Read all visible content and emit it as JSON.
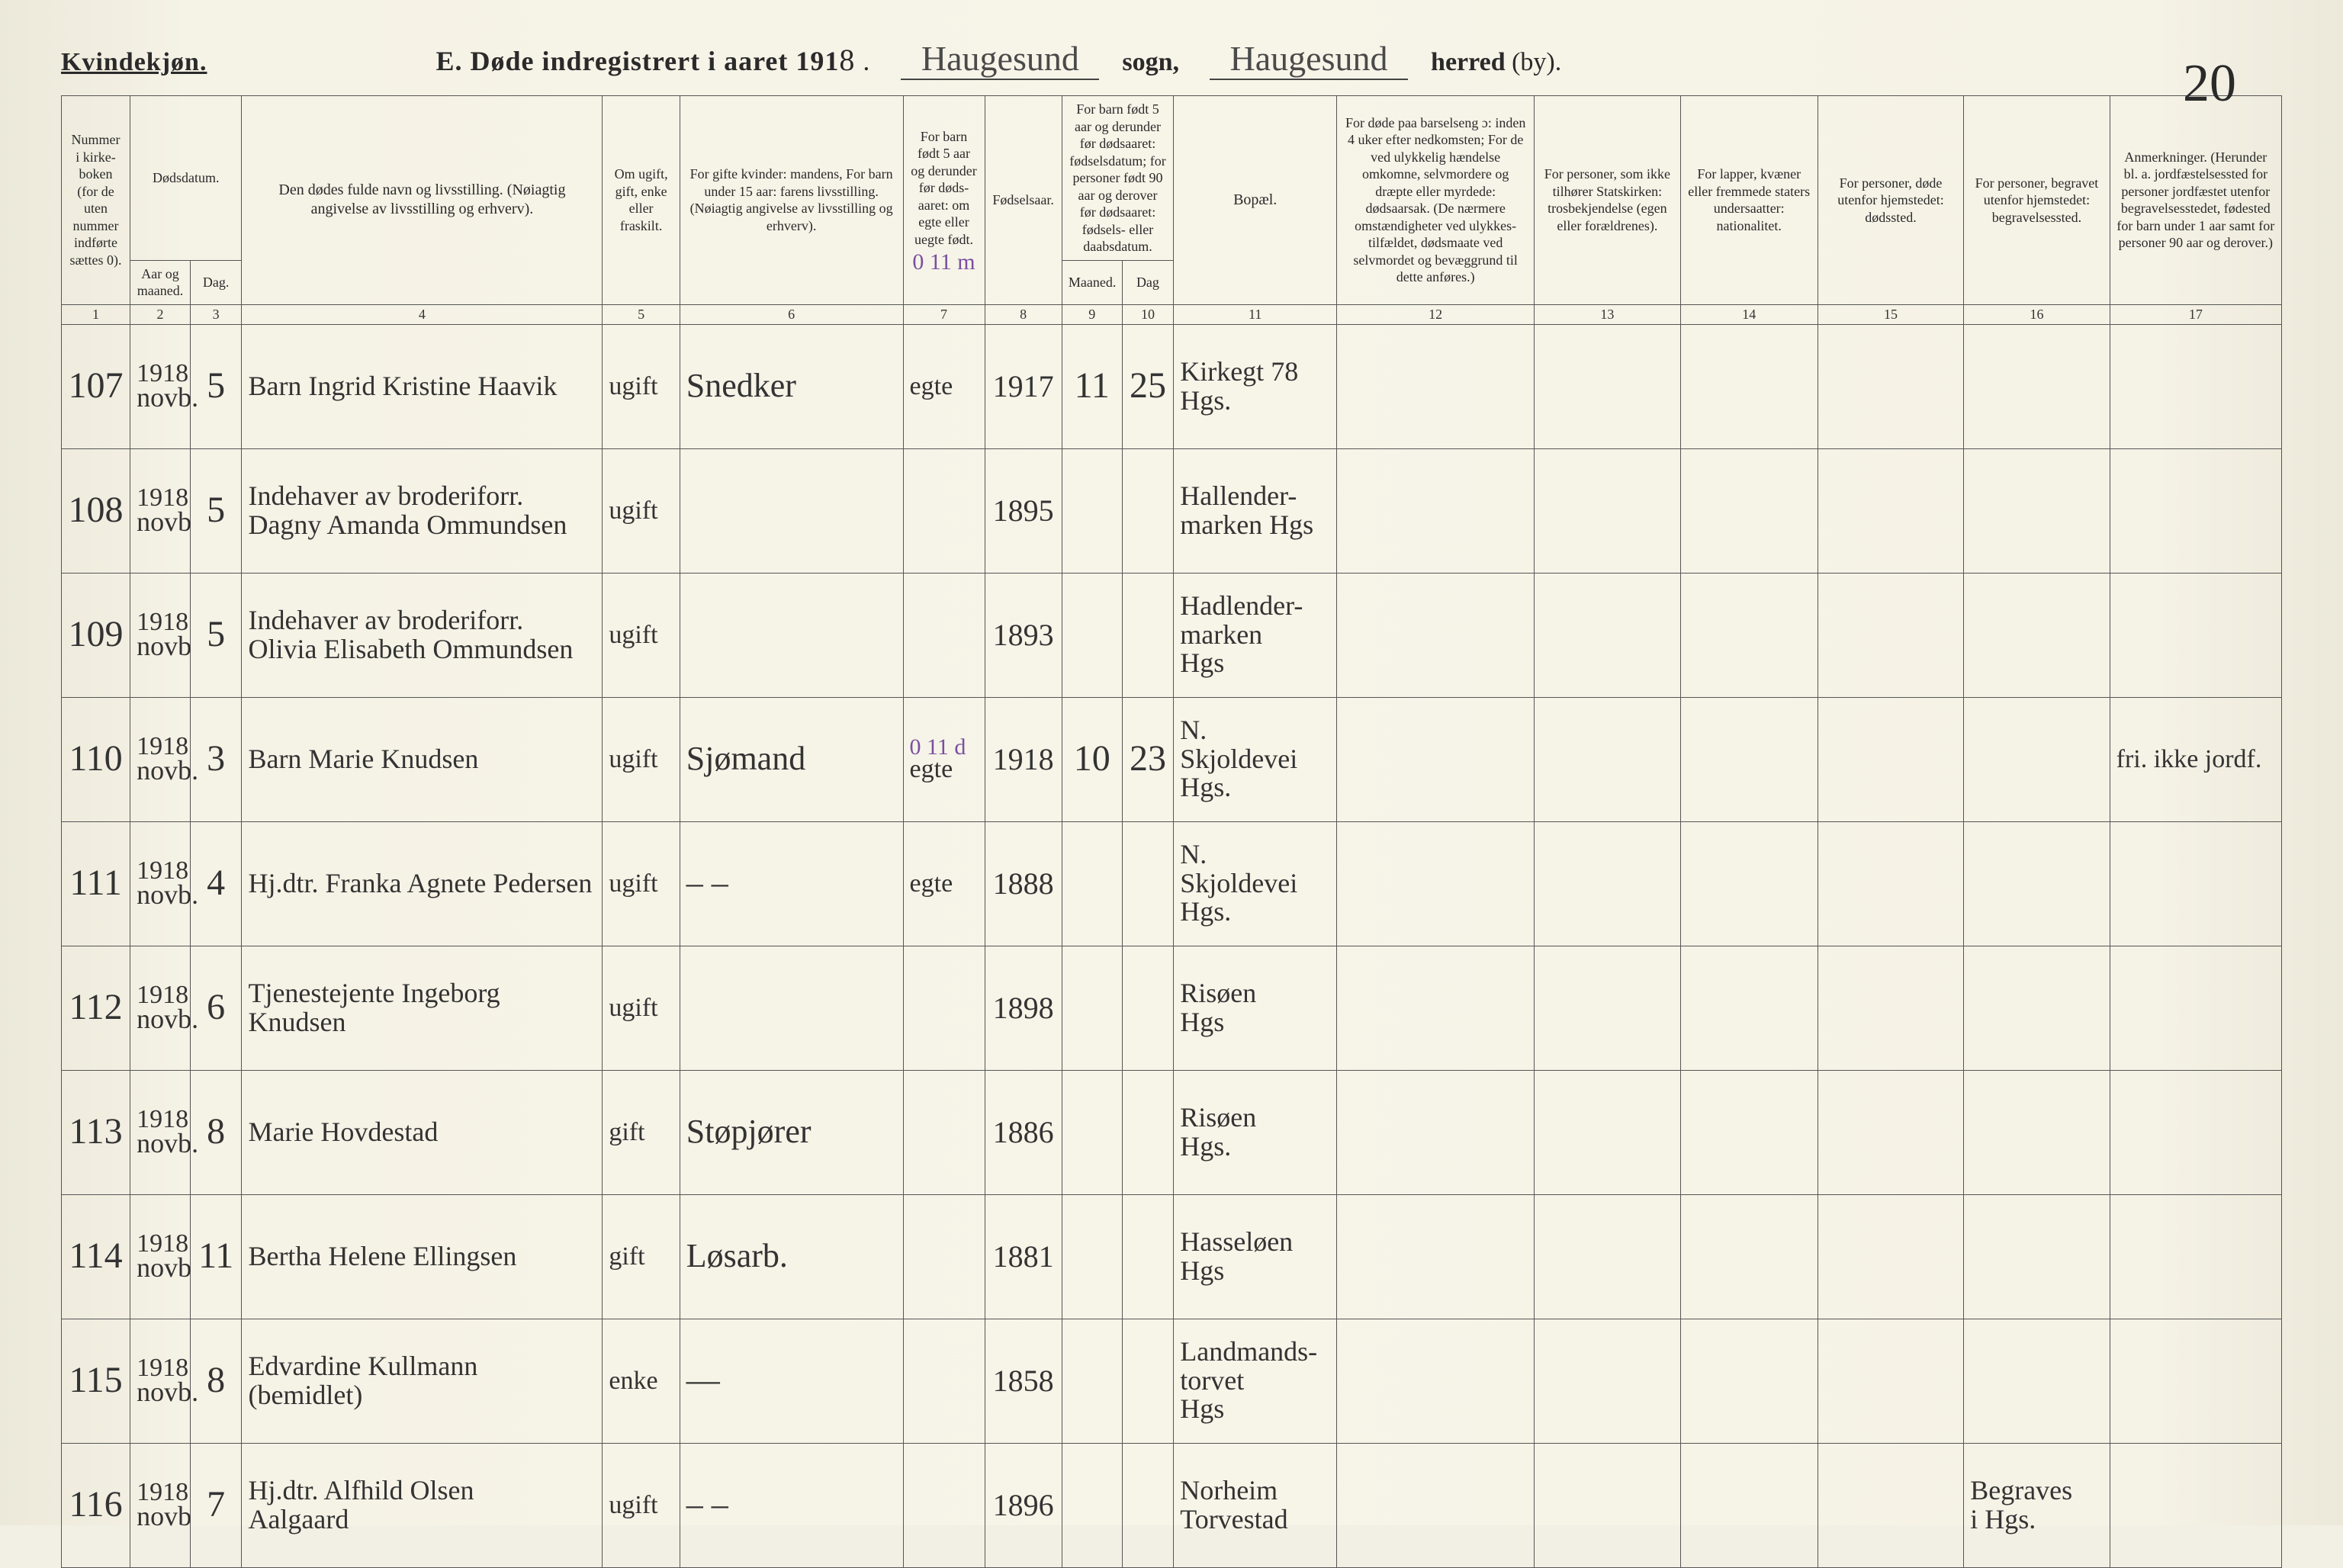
{
  "page": {
    "gender_heading": "Kvindekjøn.",
    "title_prefix": "E.  Døde indregistrert i aaret 191",
    "title_year_suffix": "8",
    "sogn_label": "sogn,",
    "herred_label": "herred (by).",
    "sogn_name": "Haugesund",
    "herred_name": "Haugesund",
    "page_number": "20"
  },
  "colors": {
    "paper": "#f5f2e6",
    "ink": "#2a2a2a",
    "purple_pencil": "#7a4fa0",
    "rule": "#555555"
  },
  "columns": {
    "c1": "Nummer i kirke­boken (for de uten nummer indførte sættes 0).",
    "c2_3_group": "Dødsdatum.",
    "c2": "Aar og maaned.",
    "c3": "Dag.",
    "c4": "Den dødes fulde navn og livsstilling. (Nøiagtig angivelse av livsstilling og erhverv).",
    "c5": "Om ugift, gift, enke eller fraskilt.",
    "c6": "For gifte kvinder: mandens, For barn under 15 aar: farens livsstilling. (Nøiagtig angivelse av livsstilling og erhverv).",
    "c7": "For barn født 5 aar og derunder før døds­aaret: om egte eller uegte født.",
    "c8": "Fødsels­aar.",
    "c9_10_group": "For barn født 5 aar og der­under før dødsaaret: fødselsdatum; for personer født 90 aar og derover før dødsaaret: fødsels- eller daabsdatum.",
    "c9": "Maaned.",
    "c10": "Dag",
    "c11": "Bopæl.",
    "c12": "For døde paa barselseng ɔ: inden 4 uker efter nedkomsten; For de ved ulykkelig hændelse omkomne, selvmordere og dræpte eller myrdede: dødsaarsak. (De nærmere omstæn­digheter ved ulykkes­tilfældet, dødsmaate ved selvmordet og bevæggrund til dette anføres.)",
    "c13": "For personer, som ikke tilhører Statskirken: trosbekjendelse (egen eller forældrenes).",
    "c14": "For lapper, kvæner eller fremmede staters undersaatter: nationalitet.",
    "c15": "For personer, døde utenfor hjemstedet: dødssted.",
    "c16": "For personer, begravet utenfor hjemstedet: begravelsessted.",
    "c17": "Anmerkninger. (Herunder bl. a. jordfæstelsessted for personer jordfæstet utenfor begravelses­stedet, fødested for barn under 1 aar samt for personer 90 aar og derover.)"
  },
  "colnums": [
    "1",
    "2",
    "3",
    "4",
    "5",
    "6",
    "7",
    "8",
    "9",
    "10",
    "11",
    "12",
    "13",
    "14",
    "15",
    "16",
    "17"
  ],
  "header_note_c7_purple": "0  11  m",
  "rows": [
    {
      "no": "107",
      "year": "1918",
      "month": "novb.",
      "day": "5",
      "name": "Barn Ingrid Kristine Haavik",
      "status": "ugift",
      "occupation": "Snedker",
      "legit": "egte",
      "birth_year": "1917",
      "birth_note_purple": "",
      "b_month": "11",
      "b_day": "25",
      "residence": "Kirkegt 78\nHgs.",
      "c12": "",
      "c13": "",
      "c14": "",
      "c15": "",
      "c16": "",
      "c17": ""
    },
    {
      "no": "108",
      "year": "1918",
      "month": "novb",
      "day": "5",
      "name": "Indehaver av broderiforr.\nDagny Amanda Ommundsen",
      "status": "ugift",
      "occupation": "",
      "legit": "",
      "birth_year": "1895",
      "birth_note_purple": "",
      "b_month": "",
      "b_day": "",
      "residence": "Hallender-\nmarken Hgs",
      "c12": "",
      "c13": "",
      "c14": "",
      "c15": "",
      "c16": "",
      "c17": ""
    },
    {
      "no": "109",
      "year": "1918",
      "month": "novb",
      "day": "5",
      "name": "Indehaver av broderiforr.\nOlivia Elisabeth Ommundsen",
      "status": "ugift",
      "occupation": "",
      "legit": "",
      "birth_year": "1893",
      "birth_note_purple": "",
      "b_month": "",
      "b_day": "",
      "residence": "Hadlender-\nmarken\nHgs",
      "c12": "",
      "c13": "",
      "c14": "",
      "c15": "",
      "c16": "",
      "c17": ""
    },
    {
      "no": "110",
      "year": "1918",
      "month": "novb.",
      "day": "3",
      "name": "Barn Marie Knudsen",
      "status": "ugift",
      "occupation": "Sjømand",
      "legit": "egte",
      "birth_year": "1918",
      "birth_note_purple": "0  11  d",
      "b_month": "10",
      "b_day": "23",
      "residence": "N. Skjoldevei\nHgs.",
      "c12": "",
      "c13": "",
      "c14": "",
      "c15": "",
      "c16": "",
      "c17": "fri. ikke jordf."
    },
    {
      "no": "111",
      "year": "1918",
      "month": "novb.",
      "day": "4",
      "name": "Hj.dtr. Franka Agnete Pedersen",
      "status": "ugift",
      "occupation": "–  –",
      "legit": "egte",
      "birth_year": "1888",
      "birth_note_purple": "",
      "b_month": "",
      "b_day": "",
      "residence": "N. Skjoldevei\nHgs.",
      "c12": "",
      "c13": "",
      "c14": "",
      "c15": "",
      "c16": "",
      "c17": ""
    },
    {
      "no": "112",
      "year": "1918",
      "month": "novb.",
      "day": "6",
      "name": "Tjenestejente Ingeborg Knudsen",
      "status": "ugift",
      "occupation": "",
      "legit": "",
      "birth_year": "1898",
      "birth_note_purple": "",
      "b_month": "",
      "b_day": "",
      "residence": "Risøen\nHgs",
      "c12": "",
      "c13": "",
      "c14": "",
      "c15": "",
      "c16": "",
      "c17": ""
    },
    {
      "no": "113",
      "year": "1918",
      "month": "novb.",
      "day": "8",
      "name": "Marie Hovdestad",
      "status": "gift",
      "occupation": "Støpjører",
      "legit": "",
      "birth_year": "1886",
      "birth_note_purple": "",
      "b_month": "",
      "b_day": "",
      "residence": "Risøen\nHgs.",
      "c12": "",
      "c13": "",
      "c14": "",
      "c15": "",
      "c16": "",
      "c17": ""
    },
    {
      "no": "114",
      "year": "1918",
      "month": "novb",
      "day": "11",
      "name": "Bertha Helene Ellingsen",
      "status": "gift",
      "occupation": "Løsarb.",
      "legit": "",
      "birth_year": "1881",
      "birth_note_purple": "",
      "b_month": "",
      "b_day": "",
      "residence": "Hasseløen\nHgs",
      "c12": "",
      "c13": "",
      "c14": "",
      "c15": "",
      "c16": "",
      "c17": ""
    },
    {
      "no": "115",
      "year": "1918",
      "month": "novb.",
      "day": "8",
      "name": "Edvardine Kullmann\n(bemidlet)",
      "status": "enke",
      "occupation": "—",
      "legit": "",
      "birth_year": "1858",
      "birth_note_purple": "",
      "b_month": "",
      "b_day": "",
      "residence": "Landmands-\ntorvet\nHgs",
      "c12": "",
      "c13": "",
      "c14": "",
      "c15": "",
      "c16": "",
      "c17": ""
    },
    {
      "no": "116",
      "year": "1918",
      "month": "novb",
      "day": "7",
      "name": "Hj.dtr. Alfhild Olsen\nAalgaard",
      "status": "ugift",
      "occupation": "–  –",
      "legit": "",
      "birth_year": "1896",
      "birth_note_purple": "",
      "b_month": "",
      "b_day": "",
      "residence": "Norheim\nTorvestad",
      "c12": "",
      "c13": "",
      "c14": "",
      "c15": "",
      "c16": "Begraves\ni Hgs.",
      "c17": ""
    }
  ]
}
